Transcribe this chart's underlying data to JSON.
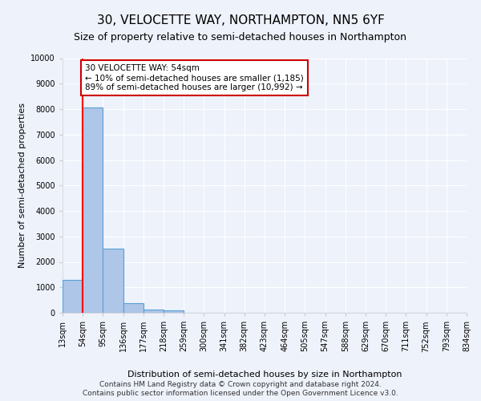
{
  "title": "30, VELOCETTE WAY, NORTHAMPTON, NN5 6YF",
  "subtitle": "Size of property relative to semi-detached houses in Northampton",
  "xlabel": "Distribution of semi-detached houses by size in Northampton",
  "ylabel": "Number of semi-detached properties",
  "footer1": "Contains HM Land Registry data © Crown copyright and database right 2024.",
  "footer2": "Contains public sector information licensed under the Open Government Licence v3.0.",
  "bin_labels": [
    "13sqm",
    "54sqm",
    "95sqm",
    "136sqm",
    "177sqm",
    "218sqm",
    "259sqm",
    "300sqm",
    "341sqm",
    "382sqm",
    "423sqm",
    "464sqm",
    "505sqm",
    "547sqm",
    "588sqm",
    "629sqm",
    "670sqm",
    "711sqm",
    "752sqm",
    "793sqm",
    "834sqm"
  ],
  "bar_values": [
    1300,
    8050,
    2520,
    380,
    140,
    110,
    0,
    0,
    0,
    0,
    0,
    0,
    0,
    0,
    0,
    0,
    0,
    0,
    0,
    0
  ],
  "bar_color": "#aec6e8",
  "bar_edge_color": "#5a9fd4",
  "ylim": [
    0,
    10000
  ],
  "yticks": [
    0,
    1000,
    2000,
    3000,
    4000,
    5000,
    6000,
    7000,
    8000,
    9000,
    10000
  ],
  "red_line_bin": 1,
  "annotation_text": "30 VELOCETTE WAY: 54sqm\n← 10% of semi-detached houses are smaller (1,185)\n89% of semi-detached houses are larger (10,992) →",
  "annotation_box_color": "#ffffff",
  "annotation_box_edge": "#cc0000",
  "background_color": "#eef2fb",
  "grid_color": "#ffffff",
  "title_fontsize": 11,
  "subtitle_fontsize": 9,
  "axis_label_fontsize": 8,
  "tick_fontsize": 7,
  "annotation_fontsize": 7.5,
  "footer_fontsize": 6.5
}
